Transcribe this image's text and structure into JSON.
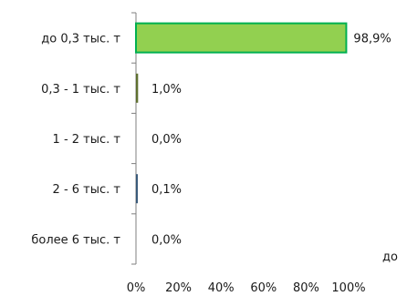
{
  "chart_data": {
    "type": "bar",
    "orientation": "horizontal",
    "categories": [
      "до 0,3 тыс. т",
      "0,3 - 1 тыс. т",
      "1 - 2 тыс. т",
      "2 - 6 тыс. т",
      "более 6 тыс. т"
    ],
    "values": [
      98.9,
      1.0,
      0.0,
      0.1,
      0.0
    ],
    "data_labels": [
      "98,9%",
      "1,0%",
      "0,0%",
      "0,1%",
      "0,0%"
    ],
    "bar_colors": [
      "#92d050",
      "#5f7030",
      "#92d050",
      "#3a5a7a",
      "#92d050"
    ],
    "bar_border_color": "#00b050",
    "xlim": [
      0,
      100
    ],
    "x_ticks": [
      "0%",
      "20%",
      "40%",
      "60%",
      "80%",
      "100%"
    ],
    "title": "",
    "xlabel": "",
    "ylabel": "",
    "grid": false,
    "legend": "none"
  },
  "stray_text": "до"
}
